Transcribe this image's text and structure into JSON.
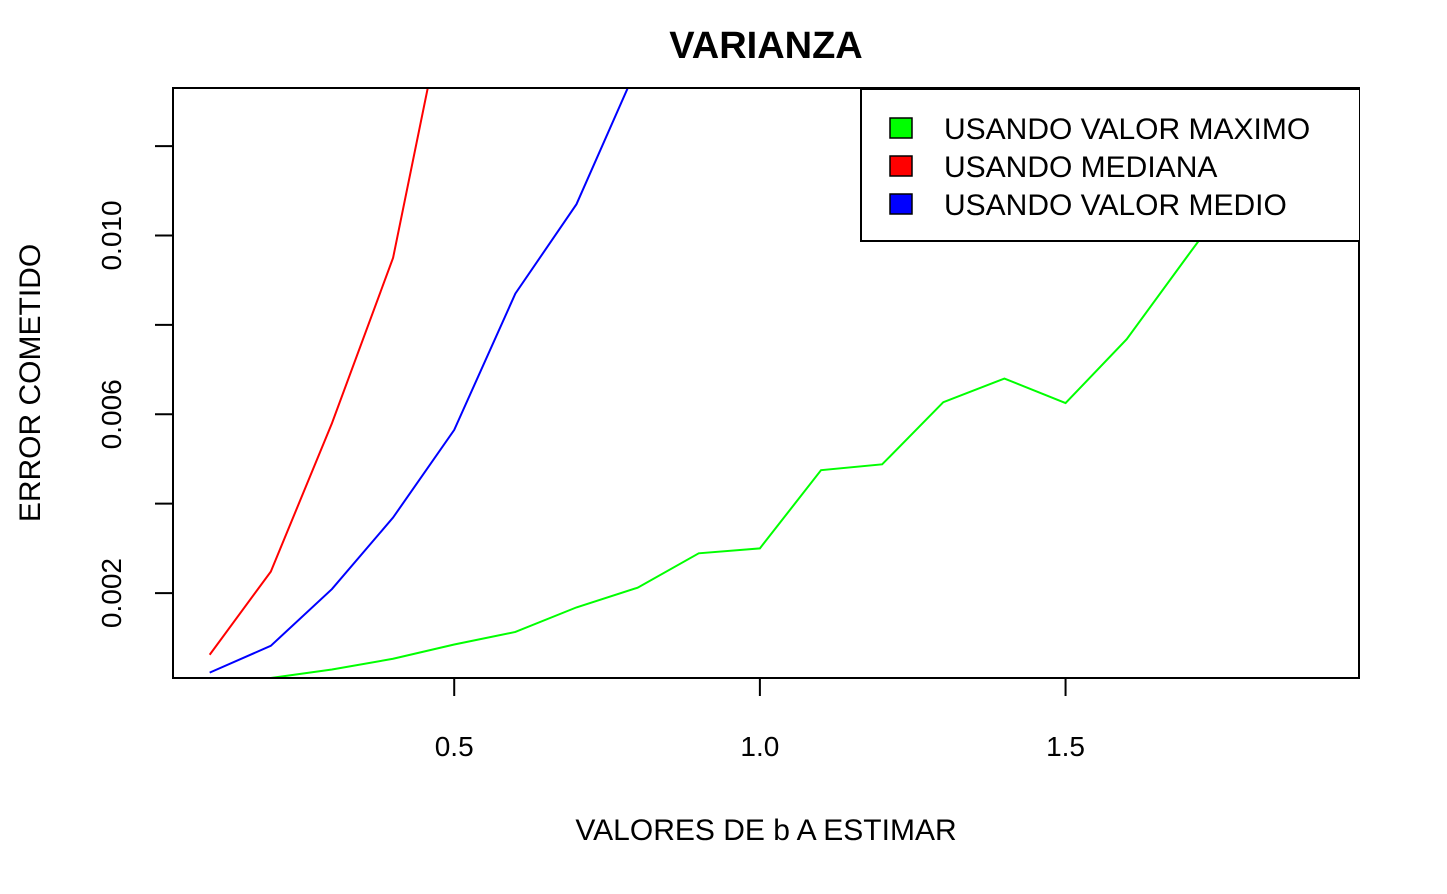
{
  "chart_data": {
    "type": "line",
    "title": "VARIANZA",
    "xlabel": "VALORES DE b A ESTIMAR",
    "ylabel": "ERROR COMETIDO",
    "xlim": [
      0.04,
      1.98
    ],
    "ylim": [
      0.0001,
      0.0133
    ],
    "x_ticks": [
      {
        "value": 0.5,
        "label": "0.5"
      },
      {
        "value": 1.0,
        "label": "1.0"
      },
      {
        "value": 1.5,
        "label": "1.5"
      }
    ],
    "y_ticks": [
      {
        "value": 0.002,
        "label": "0.002"
      },
      {
        "value": 0.004,
        "label": ""
      },
      {
        "value": 0.006,
        "label": "0.006"
      },
      {
        "value": 0.008,
        "label": ""
      },
      {
        "value": 0.01,
        "label": "0.010"
      },
      {
        "value": 0.012,
        "label": ""
      }
    ],
    "grid": false,
    "legend_position": "top-right",
    "series": [
      {
        "name": "USANDO VALOR MAXIMO",
        "color": "#00ff00",
        "x": [
          0.1,
          0.2,
          0.3,
          0.4,
          0.5,
          0.6,
          0.7,
          0.8,
          0.9,
          1.0,
          1.1,
          1.2,
          1.3,
          1.4,
          1.5,
          1.6,
          1.7,
          1.8
        ],
        "y": [
          5e-05,
          0.0001,
          0.00029,
          0.00053,
          0.00085,
          0.00113,
          0.00168,
          0.00212,
          0.00289,
          0.003,
          0.00475,
          0.00488,
          0.00627,
          0.0068,
          0.00625,
          0.00768,
          0.00955,
          0.0114
        ]
      },
      {
        "name": "USANDO MEDIANA",
        "color": "#ff0000",
        "x": [
          0.1,
          0.2,
          0.3,
          0.4,
          0.5
        ],
        "y": [
          0.00062,
          0.00248,
          0.0058,
          0.0095,
          0.0162
        ]
      },
      {
        "name": "USANDO VALOR MEDIO",
        "color": "#0000ff",
        "x": [
          0.1,
          0.2,
          0.3,
          0.4,
          0.5,
          0.6,
          0.7,
          0.8
        ],
        "y": [
          0.00022,
          0.00082,
          0.00209,
          0.00369,
          0.00565,
          0.0087,
          0.0107,
          0.0138
        ]
      }
    ]
  }
}
